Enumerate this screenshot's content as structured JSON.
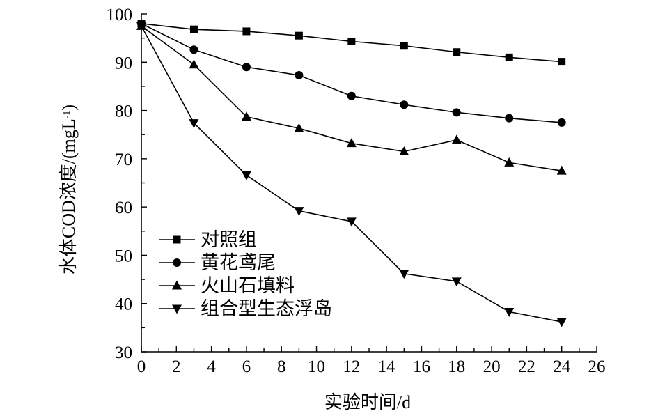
{
  "chart_data": {
    "type": "line",
    "xlabel": "实验时间/d",
    "ylabel": "水体COD浓度/(mgL",
    "ylabel_sup": "-1",
    "ylabel_tail": ")",
    "xlim": [
      0,
      26
    ],
    "ylim": [
      30,
      100
    ],
    "xticks": [
      0,
      2,
      4,
      6,
      8,
      10,
      12,
      14,
      16,
      18,
      20,
      22,
      24,
      26
    ],
    "yticks": [
      30,
      40,
      50,
      60,
      70,
      80,
      90,
      100
    ],
    "grid": false,
    "legend_position": "lower-left",
    "x": [
      0,
      3,
      6,
      9,
      12,
      15,
      18,
      21,
      24
    ],
    "series": [
      {
        "name": "对照组",
        "marker": "square",
        "values": [
          98.0,
          96.8,
          96.4,
          95.5,
          94.3,
          93.4,
          92.1,
          91.0,
          90.1
        ]
      },
      {
        "name": "黄花鸢尾",
        "marker": "circle",
        "values": [
          98.0,
          92.6,
          89.0,
          87.3,
          83.0,
          81.2,
          79.6,
          78.4,
          77.5
        ]
      },
      {
        "name": "火山石填料",
        "marker": "triangle-up",
        "values": [
          97.5,
          89.5,
          78.7,
          76.3,
          73.2,
          71.5,
          73.9,
          69.2,
          67.5
        ]
      },
      {
        "name": "组合型生态浮岛",
        "marker": "triangle-down",
        "values": [
          97.5,
          77.4,
          66.6,
          59.2,
          57.0,
          46.2,
          44.6,
          38.3,
          36.2
        ]
      }
    ]
  }
}
